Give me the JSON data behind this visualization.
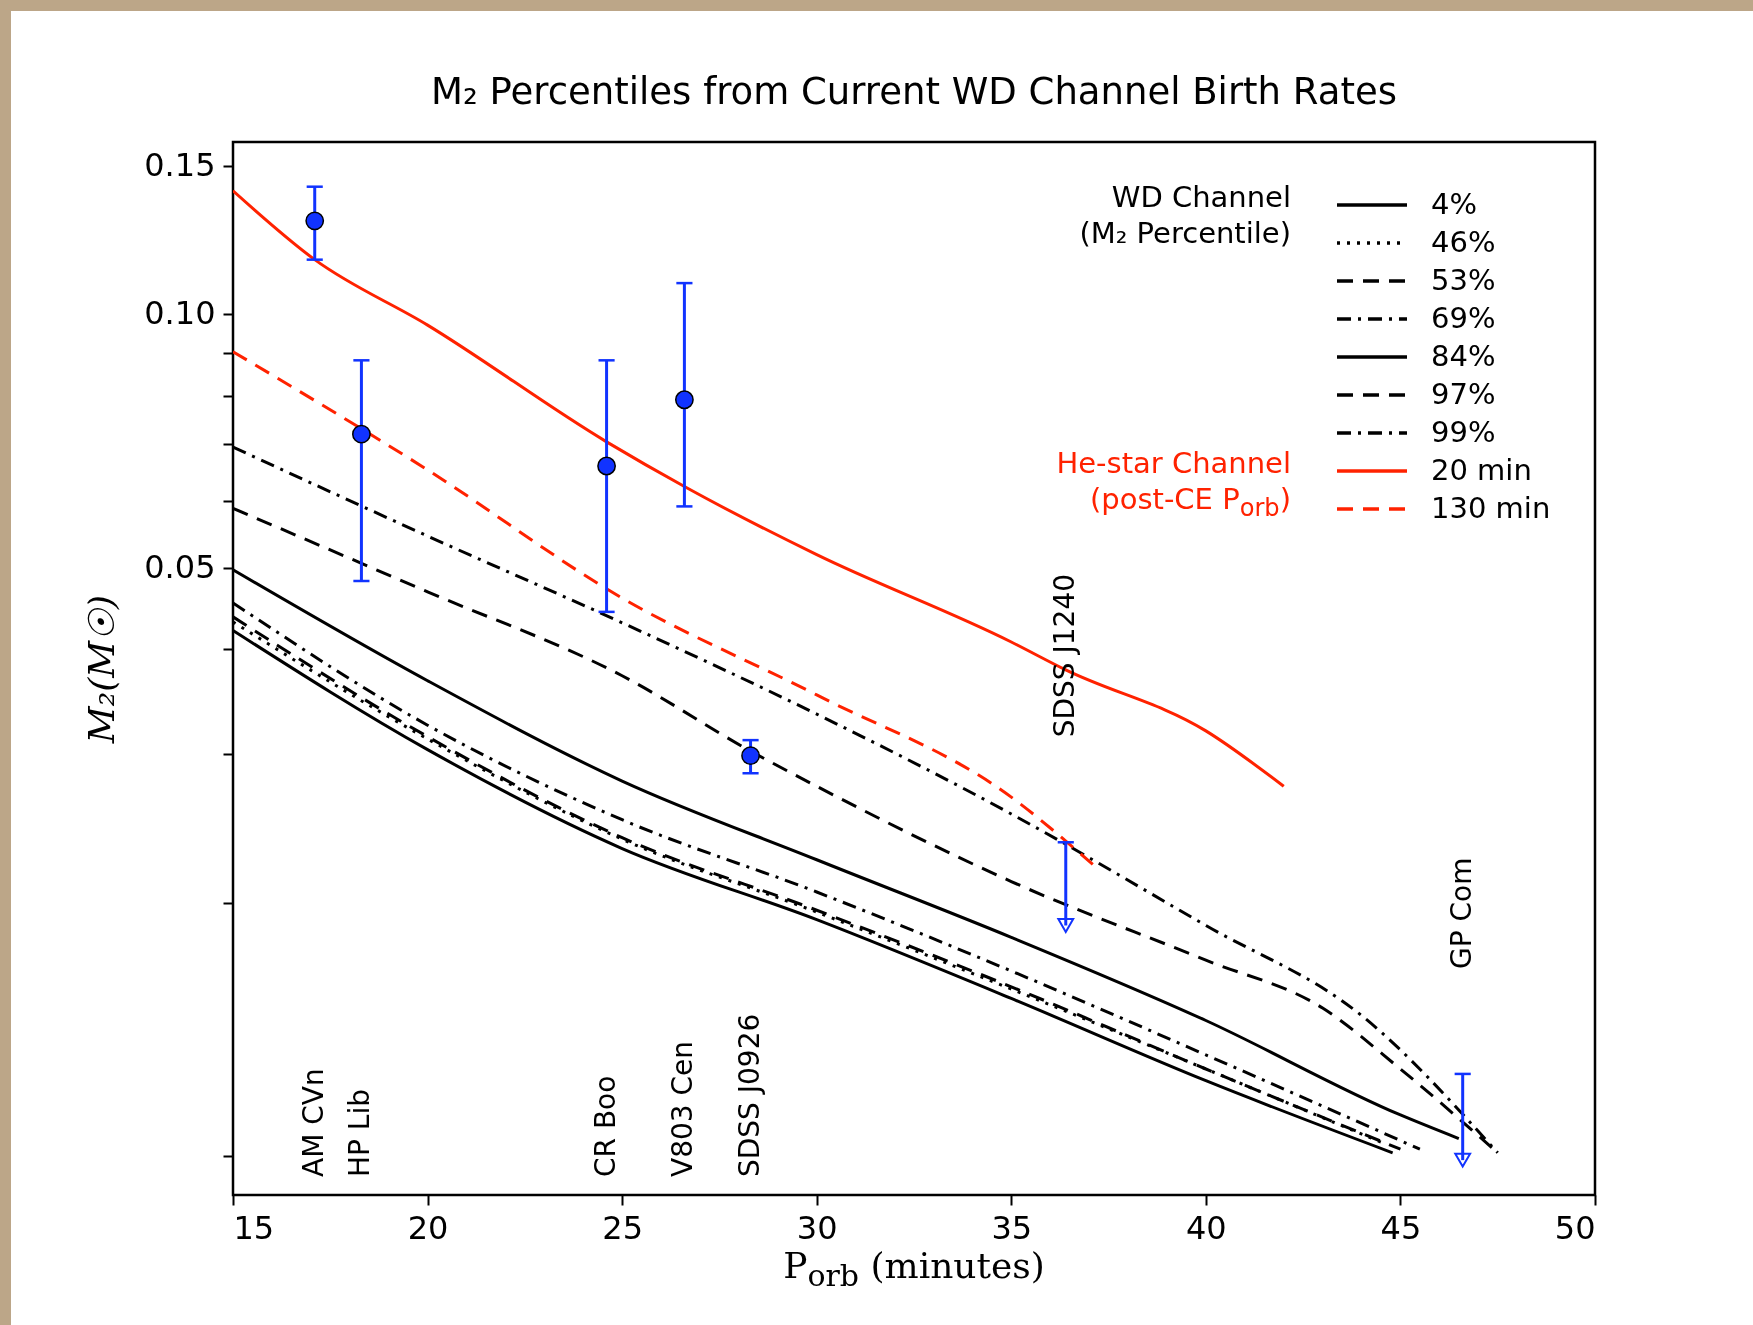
{
  "chart_data": {
    "type": "line",
    "title": "M₂ Percentiles from Current WD Channel Birth Rates",
    "xlabel": "P$_{orb}$ (minutes)",
    "ylabel": "M₂(M☉)",
    "log": "y",
    "grid": false,
    "legend": "top right",
    "xlim": [
      15,
      50
    ],
    "xticks": [
      15,
      20,
      25,
      30,
      35,
      40,
      45,
      50
    ],
    "ylim": [
      0.009,
      0.16
    ],
    "yticks": [
      {
        "value": 0.01,
        "label": null
      },
      {
        "value": 0.02,
        "label": null
      },
      {
        "value": 0.03,
        "label": null
      },
      {
        "value": 0.04,
        "label": null
      },
      0.05,
      {
        "value": 0.06,
        "label": null
      },
      {
        "value": 0.07,
        "label": null
      },
      {
        "value": 0.08,
        "label": null
      },
      {
        "value": 0.09,
        "label": null
      },
      {
        "value": 0.1,
        "label": "0.10"
      },
      0.15
    ],
    "annotations": [
      "WD Channel\n(M₂ Percentile)",
      "He-star Channel\n(post-CE P$_{orb}$)",
      "AM CVn",
      "HP Lib",
      "CR Boo",
      "V803 Cen",
      "SDSS J0926",
      "SDSS J1240",
      "GP Com"
    ],
    "series": [
      {
        "name": "4%",
        "color": "#000000",
        "line_style": "solid",
        "x": [
          15,
          20,
          25,
          30,
          35,
          40,
          44.8
        ],
        "values": [
          0.0421,
          0.0304,
          0.0232,
          0.0191,
          0.0154,
          0.0123,
          0.0101
        ]
      },
      {
        "name": "46%",
        "color": "#000000",
        "line_style": "dotted",
        "x": [
          15,
          20,
          25,
          30,
          35,
          40,
          44.5
        ],
        "values": [
          0.0431,
          0.0313,
          0.0238,
          0.0195,
          0.0158,
          0.0127,
          0.0104
        ]
      },
      {
        "name": "53%",
        "color": "#000000",
        "line_style": "dashed",
        "x": [
          15,
          20,
          25,
          30,
          35,
          40,
          45
        ],
        "values": [
          0.0437,
          0.0315,
          0.0239,
          0.0196,
          0.0159,
          0.0127,
          0.0102
        ]
      },
      {
        "name": "69%",
        "color": "#000000",
        "line_style": "dashdot",
        "x": [
          15,
          20,
          25,
          30,
          35,
          40,
          45.5
        ],
        "values": [
          0.0454,
          0.0325,
          0.0251,
          0.0206,
          0.0166,
          0.0132,
          0.0102
        ]
      },
      {
        "name": "84%",
        "color": "#000000",
        "line_style": "solid",
        "x": [
          15,
          20,
          25,
          30,
          35,
          40,
          45,
          46.5
        ],
        "values": [
          0.0497,
          0.0367,
          0.0279,
          0.0225,
          0.0182,
          0.0145,
          0.0112,
          0.0105
        ]
      },
      {
        "name": "97%",
        "color": "#000000",
        "line_style": "dashed",
        "x": [
          15,
          20,
          25,
          28.4,
          30,
          35,
          40,
          43,
          45,
          47.5
        ],
        "values": [
          0.0588,
          0.0468,
          0.0372,
          0.0301,
          0.0275,
          0.0212,
          0.0171,
          0.015,
          0.0127,
          0.0101
        ]
      },
      {
        "name": "99%",
        "color": "#000000",
        "line_style": "dashdot",
        "x": [
          15,
          20,
          25,
          30,
          35,
          40,
          44,
          47.5
        ],
        "values": [
          0.0695,
          0.0545,
          0.043,
          0.0335,
          0.0255,
          0.0188,
          0.0147,
          0.0101
        ]
      },
      {
        "name": "20 min",
        "color": "#ff2200",
        "line_style": "solid",
        "x": [
          15,
          17.1,
          20,
          24.6,
          26.6,
          30,
          35,
          36.4,
          40,
          42
        ],
        "values": [
          0.14,
          0.116,
          0.097,
          0.0705,
          0.0624,
          0.0518,
          0.0408,
          0.0378,
          0.032,
          0.0275
        ]
      },
      {
        "name": "130 min",
        "color": "#ff2200",
        "line_style": "dashed",
        "x": [
          15,
          20,
          25,
          30,
          35,
          37.1
        ],
        "values": [
          0.0902,
          0.0653,
          0.046,
          0.0353,
          0.0267,
          0.0222
        ]
      },
      {
        "type": "scatter",
        "color": "#1133ff",
        "marker": "circle",
        "x": [
          17.1,
          18.3,
          24.6,
          26.6,
          28.3
        ],
        "values": [
          0.129,
          0.072,
          0.066,
          0.0791,
          0.0299
        ],
        "errors": [
          [
            0.116,
            0.1416
          ],
          [
            0.0482,
            0.0881
          ],
          [
            0.0443,
            0.0881
          ],
          [
            0.0591,
            0.1088
          ],
          [
            0.0285,
            0.0312
          ]
        ]
      },
      {
        "type": "scatter",
        "color": "#1133ff",
        "marker": "triangle",
        "x": [
          36.4,
          46.6
        ],
        "values": [
          0.0188,
          0.0099
        ],
        "errors": [
          [
            0.0188,
            0.0236
          ],
          [
            0.0099,
            0.01253
          ]
        ]
      }
    ]
  }
}
